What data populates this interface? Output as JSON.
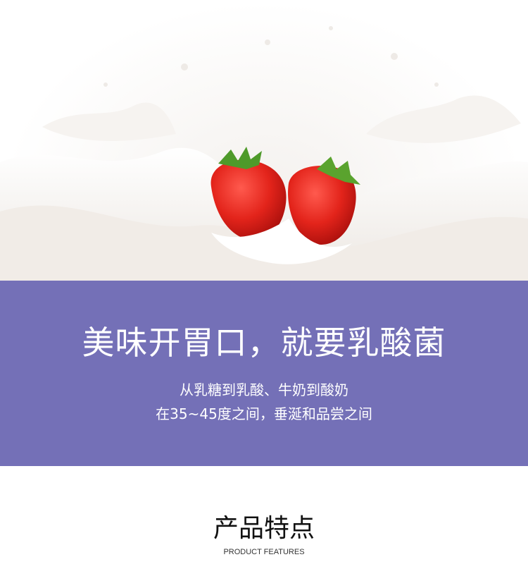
{
  "hero": {
    "image": "strawberries-in-milk-splash"
  },
  "banner": {
    "headline": "美味开胃口，就要乳酸菌",
    "line1": "从乳糖到乳酸、牛奶到酸奶",
    "line2": "在35~45度之间，垂涎和品尝之间",
    "bg_color": "#7470b7"
  },
  "features": {
    "title": "产品特点",
    "subtitle": "PRODUCT FEATURES"
  }
}
